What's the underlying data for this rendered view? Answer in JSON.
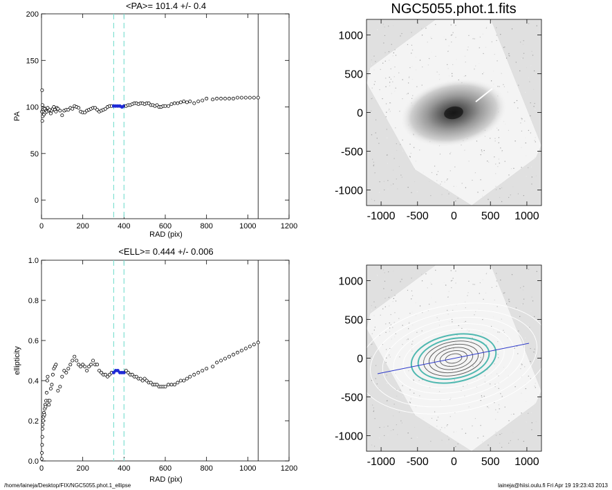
{
  "footer": {
    "path": "/home/laineja/Desktop/FIX/NGC5055.phot.1_ellipse",
    "stamp": "laineja@hiisi.oulu.fi  Fri Apr 19 19:23:43 2013"
  },
  "colors": {
    "points": "#000000",
    "highlight": "#1f2bd6",
    "dashed_lines": "#7fe0d2",
    "image_bg": "#e0e0e0",
    "fit_line": "#2a37c9",
    "contours_teal": "#4fb8b0"
  },
  "chart_data": [
    {
      "type": "scatter",
      "title": "<PA>= 101.4 +/-   0.4",
      "xlabel": "RAD (pix)",
      "ylabel": "PA",
      "xlim": [
        0,
        1200
      ],
      "ylim": [
        -20,
        200
      ],
      "xticks": [
        "0",
        "200",
        "400",
        "600",
        "800",
        "1000",
        "1200"
      ],
      "yticks": [
        "0",
        "50",
        "100",
        "150",
        "200"
      ],
      "vlines_dashed": [
        350,
        400
      ],
      "vline_solid": 1050,
      "highlight_range": [
        350,
        400
      ],
      "x": [
        2,
        3,
        4,
        5,
        6,
        8,
        10,
        12,
        15,
        18,
        22,
        26,
        30,
        35,
        40,
        45,
        50,
        55,
        60,
        65,
        70,
        75,
        80,
        90,
        100,
        110,
        120,
        130,
        140,
        150,
        160,
        170,
        180,
        190,
        200,
        210,
        220,
        230,
        240,
        250,
        260,
        270,
        280,
        290,
        300,
        310,
        320,
        330,
        340,
        350,
        360,
        370,
        380,
        390,
        400,
        410,
        420,
        430,
        440,
        450,
        460,
        470,
        480,
        490,
        500,
        510,
        520,
        530,
        540,
        550,
        560,
        570,
        580,
        590,
        600,
        615,
        630,
        645,
        660,
        675,
        690,
        705,
        720,
        740,
        760,
        780,
        800,
        830,
        850,
        870,
        890,
        910,
        930,
        950,
        970,
        990,
        1010,
        1030,
        1050
      ],
      "values": [
        95,
        118,
        85,
        102,
        90,
        97,
        95,
        92,
        98,
        94,
        96,
        95,
        99,
        96,
        97,
        93,
        96,
        98,
        100,
        97,
        95,
        99,
        98,
        96,
        91,
        96,
        97,
        97,
        99,
        98,
        101,
        100,
        99,
        95,
        94,
        94,
        96,
        97,
        98,
        99,
        99,
        97,
        95,
        96,
        97,
        98,
        100,
        101,
        101,
        101,
        101,
        101,
        101,
        100,
        101,
        101,
        102,
        102,
        103,
        104,
        104,
        103,
        104,
        104,
        103,
        104,
        104,
        102,
        102,
        101,
        102,
        100,
        100,
        101,
        101,
        101,
        103,
        104,
        104,
        105,
        106,
        105,
        106,
        104,
        106,
        107,
        109,
        108,
        109,
        109,
        109,
        109,
        109,
        110,
        110,
        110,
        110,
        110,
        110
      ]
    },
    {
      "type": "scatter",
      "title": "<ELL>= 0.444 +/-  0.006",
      "xlabel": "RAD (pix)",
      "ylabel": "ellipticity",
      "xlim": [
        0,
        1200
      ],
      "ylim": [
        0,
        1
      ],
      "xticks": [
        "0",
        "200",
        "400",
        "600",
        "800",
        "1000",
        "1200"
      ],
      "yticks": [
        "0.0",
        "0.2",
        "0.4",
        "0.6",
        "0.8",
        "1.0"
      ],
      "vlines_dashed": [
        350,
        400
      ],
      "vline_solid": 1050,
      "highlight_range": [
        350,
        400
      ],
      "x": [
        1,
        2,
        3,
        4,
        5,
        6,
        8,
        10,
        12,
        14,
        16,
        18,
        20,
        22,
        25,
        28,
        30,
        33,
        36,
        40,
        45,
        50,
        55,
        60,
        65,
        70,
        80,
        90,
        100,
        110,
        120,
        130,
        140,
        150,
        160,
        170,
        180,
        190,
        200,
        210,
        220,
        230,
        240,
        250,
        260,
        270,
        280,
        290,
        300,
        310,
        320,
        330,
        340,
        350,
        360,
        370,
        380,
        390,
        400,
        410,
        420,
        430,
        440,
        450,
        460,
        470,
        480,
        490,
        500,
        510,
        520,
        530,
        540,
        550,
        560,
        570,
        580,
        590,
        600,
        615,
        630,
        645,
        660,
        675,
        690,
        705,
        720,
        740,
        760,
        780,
        800,
        830,
        850,
        870,
        890,
        910,
        930,
        950,
        970,
        990,
        1010,
        1030,
        1050
      ],
      "values": [
        0.01,
        0.04,
        0.08,
        0.12,
        0.16,
        0.18,
        0.2,
        0.22,
        0.24,
        0.23,
        0.26,
        0.28,
        0.27,
        0.3,
        0.34,
        0.4,
        0.42,
        0.3,
        0.28,
        0.3,
        0.36,
        0.38,
        0.43,
        0.46,
        0.47,
        0.48,
        0.35,
        0.37,
        0.42,
        0.45,
        0.44,
        0.46,
        0.48,
        0.5,
        0.52,
        0.5,
        0.48,
        0.47,
        0.48,
        0.47,
        0.45,
        0.47,
        0.48,
        0.5,
        0.48,
        0.48,
        0.45,
        0.44,
        0.43,
        0.43,
        0.42,
        0.43,
        0.44,
        0.44,
        0.45,
        0.45,
        0.44,
        0.44,
        0.44,
        0.45,
        0.44,
        0.43,
        0.43,
        0.42,
        0.42,
        0.41,
        0.41,
        0.4,
        0.41,
        0.4,
        0.39,
        0.39,
        0.38,
        0.38,
        0.38,
        0.37,
        0.37,
        0.37,
        0.37,
        0.38,
        0.38,
        0.38,
        0.39,
        0.4,
        0.4,
        0.41,
        0.42,
        0.43,
        0.44,
        0.45,
        0.46,
        0.47,
        0.49,
        0.5,
        0.51,
        0.52,
        0.53,
        0.54,
        0.55,
        0.56,
        0.57,
        0.58,
        0.59
      ]
    }
  ],
  "images": [
    {
      "title": "NGC5055.phot.1.fits",
      "xlim": [
        -1200,
        1200
      ],
      "ylim": [
        -1200,
        1200
      ],
      "xticks": [
        "-1000",
        "-500",
        "0",
        "500",
        "1000"
      ],
      "yticks": [
        "-1000",
        "-500",
        "0",
        "500",
        "1000"
      ]
    },
    {
      "title": "",
      "xlim": [
        -1200,
        1200
      ],
      "ylim": [
        -1200,
        1200
      ],
      "xticks": [
        "-1000",
        "-500",
        "0",
        "500",
        "1000"
      ],
      "yticks": [
        "-1000",
        "-500",
        "0",
        "500",
        "1000"
      ],
      "fit_line_pa": 101.4
    }
  ]
}
